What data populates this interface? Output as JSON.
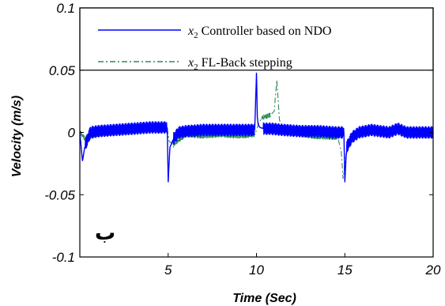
{
  "chart_data": {
    "type": "line",
    "title": "",
    "xlabel": "Time (Sec)",
    "ylabel": "Velocity (m/s)",
    "xlim": [
      0,
      20
    ],
    "ylim": [
      -0.1,
      0.1
    ],
    "xticks": [
      5,
      10,
      15,
      20
    ],
    "xtick_labels": [
      "5",
      "10",
      "15",
      "20"
    ],
    "yticks": [
      0.1,
      0.05,
      0,
      -0.05,
      -0.1
    ],
    "ytick_labels": [
      "0.1",
      "0.05",
      "0",
      "-0.05",
      "-0.1"
    ],
    "grid": false,
    "legend_position": "top",
    "annotation": "ب",
    "series": [
      {
        "name_var": "x",
        "name_sub": "2",
        "name_rest": " Controller based on NDO",
        "color": "#0000ff",
        "style": "solid",
        "x": [
          0.0,
          0.15,
          0.3,
          0.6,
          1.0,
          2.0,
          3.0,
          4.0,
          4.95,
          5.0,
          5.1,
          5.3,
          5.6,
          6.0,
          7.0,
          8.0,
          9.0,
          9.9,
          10.0,
          10.05,
          10.1,
          10.2,
          10.4,
          10.8,
          11.5,
          12.5,
          13.5,
          14.5,
          14.95,
          15.0,
          15.1,
          15.4,
          15.8,
          16.5,
          17.5,
          18.0,
          18.5,
          19.5,
          20.0
        ],
        "y": [
          0.0,
          -0.023,
          -0.01,
          0.0,
          0.001,
          0.002,
          0.003,
          0.004,
          0.004,
          -0.04,
          -0.012,
          -0.005,
          0.0,
          0.001,
          0.002,
          0.002,
          0.002,
          0.002,
          0.048,
          0.012,
          0.006,
          0.004,
          0.003,
          0.003,
          0.002,
          0.001,
          0.001,
          0.0,
          0.0,
          -0.04,
          -0.012,
          -0.004,
          0.0,
          0.002,
          0.0,
          0.003,
          0.0,
          0.0,
          0.0
        ],
        "noise_band": 0.005
      },
      {
        "name_var": "x",
        "name_sub": "2",
        "name_rest": " FL-Back stepping",
        "color": "#2e8b57",
        "style": "dash-dot",
        "x": [
          0.0,
          0.3,
          1.0,
          2.0,
          3.0,
          4.0,
          4.95,
          5.05,
          5.3,
          5.6,
          6.0,
          7.0,
          8.0,
          9.0,
          9.9,
          10.1,
          10.3,
          10.8,
          11.0,
          11.15,
          11.3,
          11.5,
          12.0,
          13.0,
          14.0,
          14.6,
          14.8,
          14.9,
          15.05,
          15.3,
          15.6,
          16.0,
          17.0,
          18.0,
          18.5,
          19.0,
          20.0
        ],
        "y": [
          0.0,
          -0.005,
          -0.002,
          0.0,
          0.002,
          0.003,
          0.003,
          -0.007,
          -0.01,
          -0.006,
          -0.002,
          -0.003,
          -0.002,
          -0.003,
          -0.002,
          0.006,
          0.012,
          0.014,
          0.017,
          0.042,
          0.01,
          0.003,
          0.0,
          -0.003,
          -0.004,
          -0.004,
          -0.015,
          -0.037,
          -0.02,
          -0.006,
          -0.002,
          0.002,
          0.0,
          0.004,
          0.002,
          0.0,
          0.0
        ],
        "noise_band": 0.002
      }
    ]
  }
}
